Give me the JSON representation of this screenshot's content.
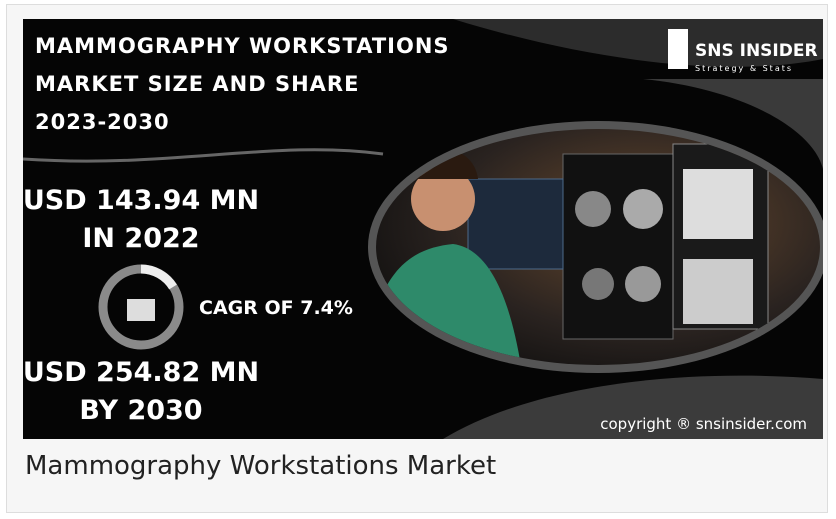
{
  "banner": {
    "title_lines": [
      "MAMMOGRAPHY WORKSTATIONS",
      "MARKET SIZE AND SHARE",
      "2023-2030"
    ],
    "stat_start": {
      "value": "USD 143.94 MN",
      "period": "IN 2022"
    },
    "cagr": "CAGR OF 7.4%",
    "stat_end": {
      "value": "USD 254.82 MN",
      "period": "BY 2030"
    },
    "logo": {
      "name": "SNS INSIDER",
      "tagline": "Strategy & Stats"
    },
    "copyright": "copyright ® snsinsider.com"
  },
  "caption": "Mammography Workstations Market"
}
